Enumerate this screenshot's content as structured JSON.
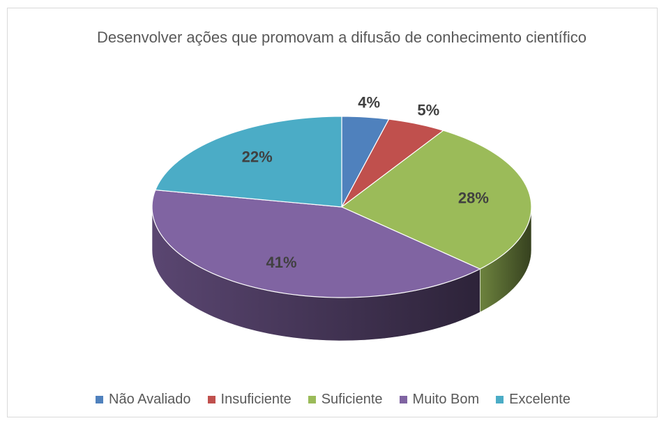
{
  "chart_data": {
    "type": "pie3d",
    "title": "Desenvolver ações que promovam a difusão de conhecimento científico",
    "categories": [
      "Não Avaliado",
      "Insuficiente",
      "Suficiente",
      "Muito Bom",
      "Excelente"
    ],
    "values": [
      4,
      5,
      28,
      41,
      22
    ],
    "value_labels": [
      "4%",
      "5%",
      "28%",
      "41%",
      "22%"
    ],
    "colors": [
      "#4f81bd",
      "#c0504d",
      "#9bbb59",
      "#8064a2",
      "#4bacc6"
    ],
    "legend": "bottom"
  }
}
